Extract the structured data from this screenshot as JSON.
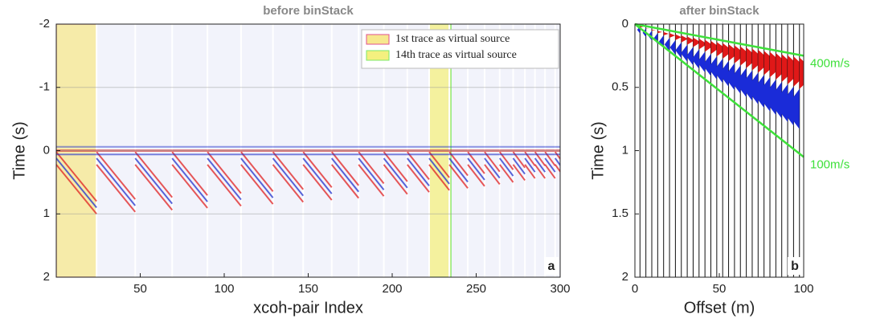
{
  "chart_data": [
    {
      "type": "heatmap",
      "title": "before binStack",
      "x_label": "xcoh-pair Index",
      "y_label": "Time (s)",
      "xlim": [
        0,
        300
      ],
      "xticks": [
        50,
        100,
        150,
        200,
        250,
        300
      ],
      "ylim": [
        -2,
        2
      ],
      "yticks": [
        -2,
        -1,
        0,
        1,
        2
      ],
      "y_inverted": true,
      "grid": true,
      "panel_label": "a",
      "spans": [
        {
          "name": "1st trace as virtual source",
          "x": [
            0,
            24
          ],
          "color": "#f7e88e",
          "edge": "#e0508f"
        },
        {
          "name": "14th trace as virtual source",
          "x": [
            222,
            235
          ],
          "color": "#f4f07f",
          "edge": "#7ce86a"
        }
      ]
    },
    {
      "type": "line",
      "title": "after binStack",
      "x_label": "Offset (m)",
      "y_label": "Time (s)",
      "xlim": [
        0,
        100
      ],
      "xticks": [
        0,
        50,
        100
      ],
      "ylim": [
        0,
        2
      ],
      "yticks": [
        0,
        0.5,
        1,
        1.5,
        2
      ],
      "y_inverted": true,
      "grid": false,
      "panel_label": "b",
      "series": [
        {
          "label": "400m/s",
          "color": "#3ee03a",
          "x": [
            0,
            100
          ],
          "values": [
            0,
            0.25
          ]
        },
        {
          "label": "100m/s",
          "color": "#3ee03a",
          "x": [
            0,
            100
          ],
          "values": [
            0,
            1.05
          ]
        }
      ]
    }
  ]
}
